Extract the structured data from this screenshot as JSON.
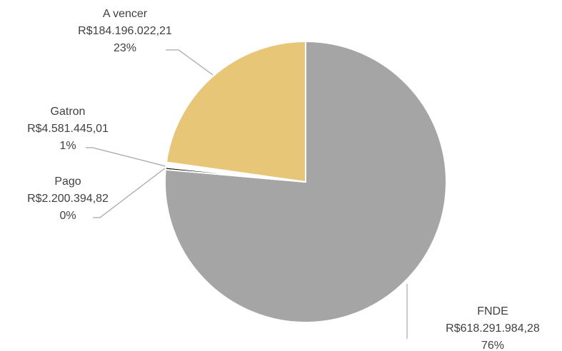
{
  "chart_data": {
    "type": "pie",
    "categories": [
      "FNDE",
      "Pago",
      "Gatron",
      "A vencer"
    ],
    "values": [
      618291984.28,
      2200394.82,
      4581445.01,
      184196022.21
    ],
    "value_labels": [
      "R$618.291.984,28",
      "R$2.200.394,82",
      "R$4.581.445,01",
      "R$184.196.022,21"
    ],
    "percent_labels": [
      "76%",
      "0%",
      "1%",
      "23%"
    ],
    "colors": [
      "#a5a5a5",
      "#000000",
      "#ffffff",
      "#e8c677"
    ]
  }
}
